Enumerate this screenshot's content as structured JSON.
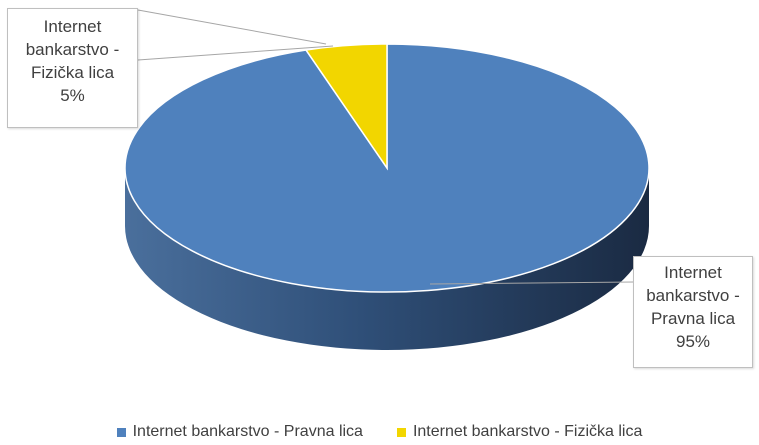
{
  "chart_data": {
    "type": "pie",
    "title": "",
    "categories": [
      "Internet bankarstvo - Pravna lica",
      "Internet bankarstvo - Fizička lica"
    ],
    "values": [
      95,
      5
    ],
    "colors": [
      "#4f81bd",
      "#f2d600"
    ],
    "data_labels": [
      {
        "line1": "Internet",
        "line2": "bankarstvo -",
        "line3": "Pravna lica",
        "value": "95%"
      },
      {
        "line1": "Internet",
        "line2": "bankarstvo -",
        "line3": "Fizička lica",
        "value": "5%"
      }
    ],
    "legend": {
      "position": "bottom",
      "items": [
        "Internet bankarstvo - Pravna lica",
        "Internet bankarstvo - Fizička lica"
      ]
    },
    "style": "3d"
  }
}
